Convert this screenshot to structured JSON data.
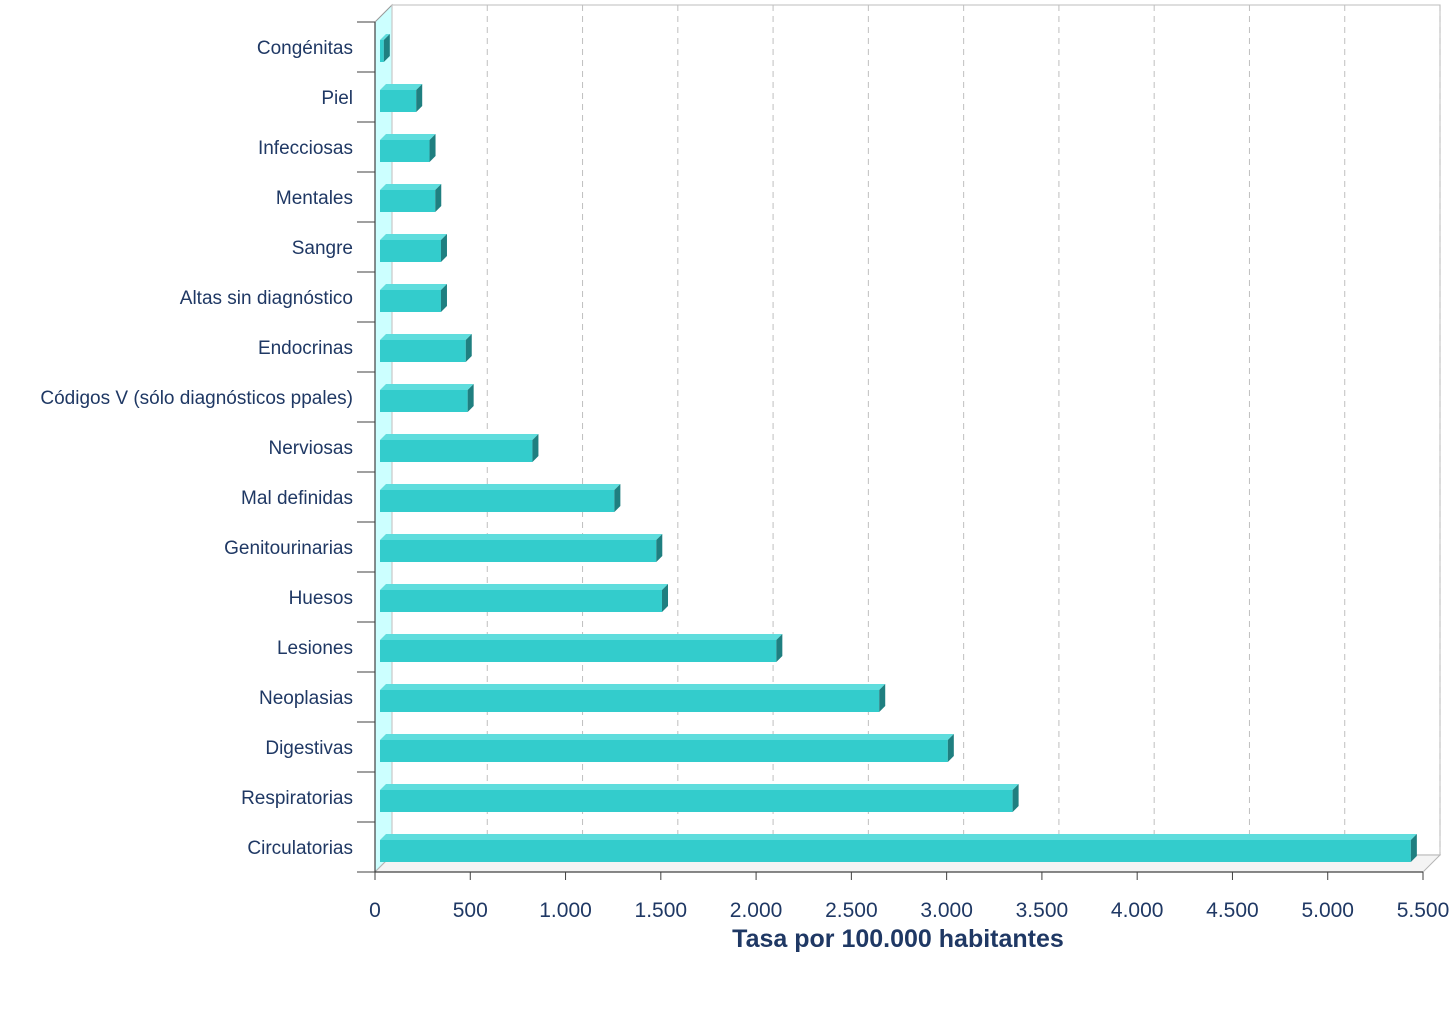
{
  "chart_data": {
    "type": "bar",
    "orientation": "horizontal",
    "categories": [
      "Circulatorias",
      "Respiratorias",
      "Digestivas",
      "Neoplasias",
      "Lesiones",
      "Huesos",
      "Genitourinarias",
      "Mal definidas",
      "Nerviosas",
      "Códigos V (sólo diagnósticos ppales)",
      "Endocrinas",
      "Altas sin diagnóstico",
      "Sangre",
      "Mentales",
      "Infecciosas",
      "Piel",
      "Congénitas"
    ],
    "values": [
      5410,
      3320,
      2980,
      2620,
      2080,
      1480,
      1450,
      1230,
      800,
      460,
      450,
      320,
      320,
      290,
      260,
      190,
      20
    ],
    "xlabel": "Tasa por 100.000 habitantes",
    "ylabel": "",
    "xlim": [
      0,
      5500
    ],
    "xticks": [
      0,
      500,
      1000,
      1500,
      2000,
      2500,
      3000,
      3500,
      4000,
      4500,
      5000,
      5500
    ],
    "xtick_labels": [
      "0",
      "500",
      "1.000",
      "1.500",
      "2.000",
      "2.500",
      "3.000",
      "3.500",
      "4.000",
      "4.500",
      "5.000",
      "5.500"
    ],
    "grid": "vertical dashed",
    "style": "3d",
    "colors": {
      "bar_front": "#33CCCC",
      "bar_top": "#5FDDDD",
      "bar_side": "#1F7F80",
      "floor_wall": "#CCFFFF",
      "grid": "#BFBFBF",
      "text": "#1F3864"
    }
  }
}
